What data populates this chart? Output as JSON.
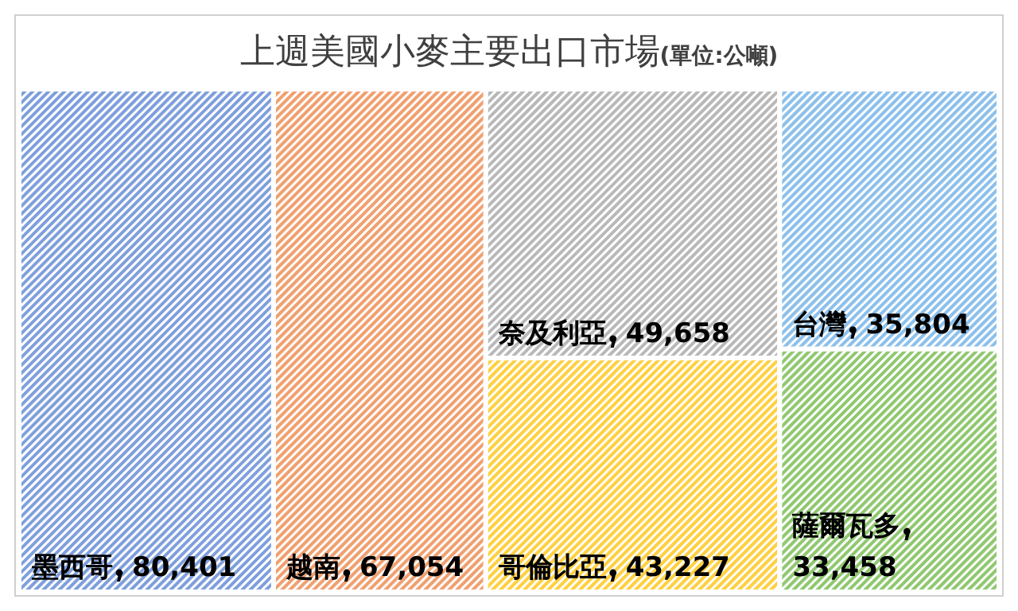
{
  "chart_data": {
    "type": "other",
    "title": "上週美國小麥主要出口市場",
    "subtitle": "(單位:公噸)",
    "categories": [
      "墨西哥",
      "越南",
      "奈及利亞",
      "哥倫比亞",
      "台灣",
      "薩爾瓦多"
    ],
    "values": [
      80401,
      67054,
      49658,
      43227,
      35804,
      33458
    ],
    "value_labels": [
      "80,401",
      "67,054",
      "49,658",
      "43,227",
      "35,804",
      "33,458"
    ],
    "colors": [
      "#7f9fdc",
      "#f0a070",
      "#b8b8b8",
      "#ffd040",
      "#8cc0ec",
      "#90c870"
    ],
    "data_labels": true
  }
}
